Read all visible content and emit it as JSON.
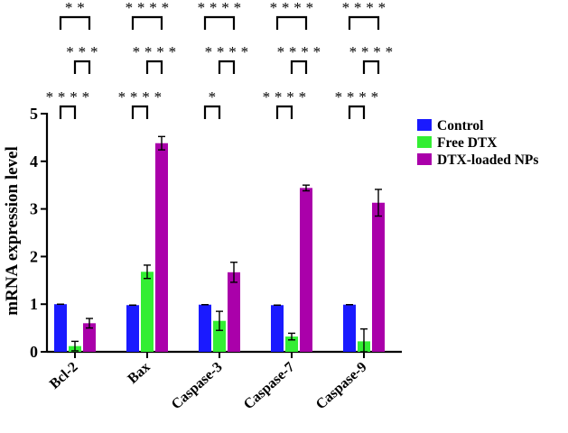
{
  "chart_data": {
    "type": "bar",
    "ylabel": "mRNA expression level",
    "ylim": [
      0,
      5
    ],
    "yticks": [
      "0",
      "1",
      "2",
      "3",
      "4",
      "5"
    ],
    "categories": [
      "Bcl-2",
      "Bax",
      "Caspase-3",
      "Caspase-7",
      "Caspase-9"
    ],
    "series": [
      {
        "name": "Control",
        "color": "#1a1aff",
        "values": [
          1.0,
          0.98,
          0.99,
          0.98,
          0.99
        ],
        "errors": [
          0.0,
          0.0,
          0.0,
          0.0,
          0.0
        ]
      },
      {
        "name": "Free DTX",
        "color": "#33ee33",
        "values": [
          0.12,
          1.68,
          0.65,
          0.32,
          0.22
        ],
        "errors": [
          0.1,
          0.14,
          0.2,
          0.07,
          0.26
        ]
      },
      {
        "name": "DTX-loaded NPs",
        "color": "#aa00aa",
        "values": [
          0.6,
          4.38,
          1.67,
          3.44,
          3.13
        ],
        "errors": [
          0.1,
          0.14,
          0.21,
          0.06,
          0.28
        ]
      }
    ],
    "legend_position": "right",
    "significance": [
      {
        "level": 1,
        "labels": [
          "****",
          "****",
          "*",
          "****",
          "****"
        ]
      },
      {
        "level": 2,
        "labels": [
          "***",
          "****",
          "****",
          "****",
          "****"
        ]
      },
      {
        "level": 3,
        "labels": [
          "**",
          "****",
          "****",
          "****",
          "****"
        ]
      }
    ]
  }
}
